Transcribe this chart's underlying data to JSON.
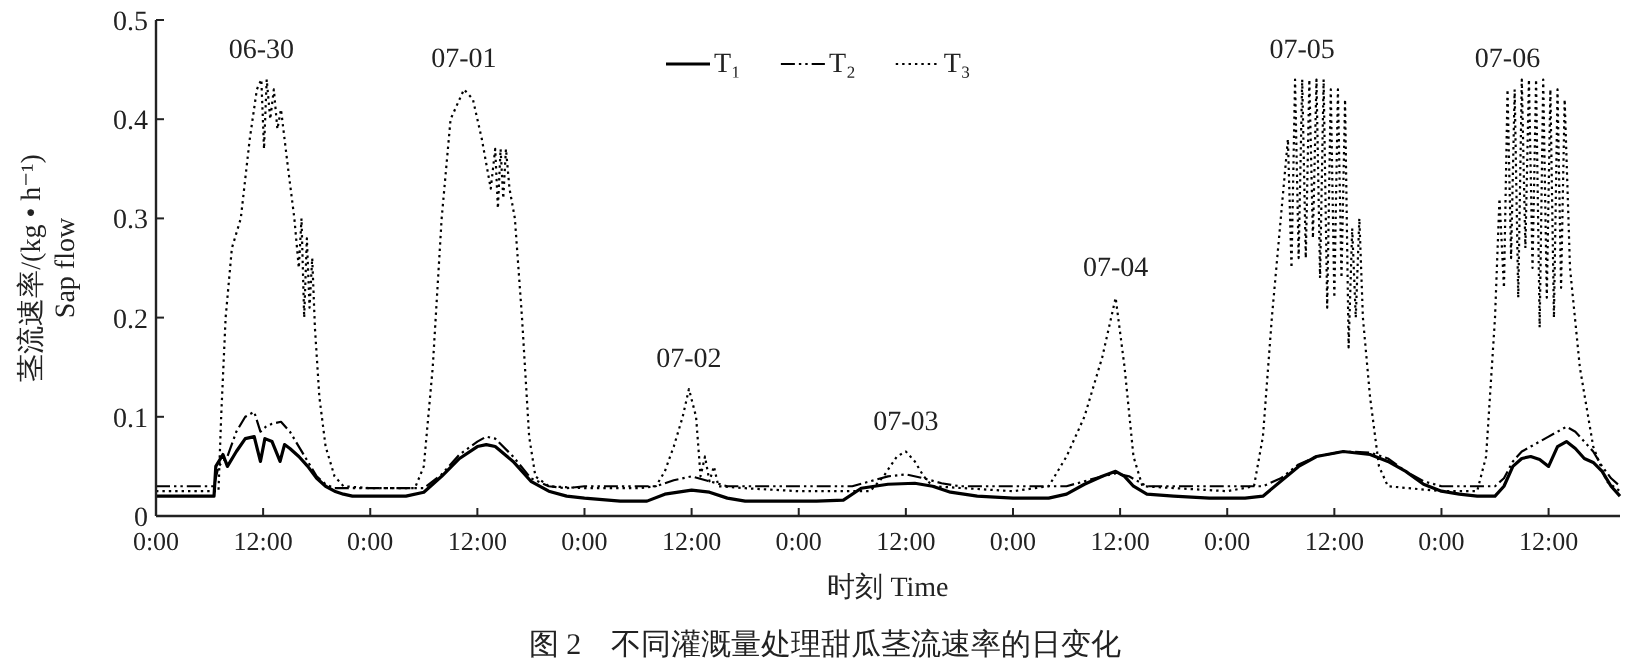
{
  "chart_data": {
    "type": "line",
    "xlabel": "时刻 Time",
    "ylabel": "茎流速率/(kg • h⁻¹)\nSap flow",
    "annotations": [
      {
        "text": "06-30",
        "x": "--06-30T11:48",
        "y": 0.44
      },
      {
        "text": "07-01",
        "x": "--07-01T10:30",
        "y": 0.43
      },
      {
        "text": "07-02",
        "x": "--07-02T11:42",
        "y": 0.128
      },
      {
        "text": "07-03",
        "x": "--07-03T12:00",
        "y": 0.065
      },
      {
        "text": "07-04",
        "x": "--07-04T11:30",
        "y": 0.22
      },
      {
        "text": "07-05",
        "x": "--07-05T08:24",
        "y": 0.44
      },
      {
        "text": "07-06",
        "x": "--07-06T07:24",
        "y": 0.43
      },
      "图 2　不同灌溉量处理甜瓜茎流速率的日变化"
    ],
    "xlim": [
      "--06-30T00:00",
      "--07-06T20:00"
    ],
    "ylim": [
      0,
      0.5
    ],
    "yticks": [
      0,
      0.1,
      0.2,
      0.3,
      0.4,
      0.5
    ],
    "xticks": [
      {
        "value": "--06-30T00:00",
        "label": "0:00"
      },
      {
        "value": "--06-30T12:00",
        "label": "12:00"
      },
      {
        "value": "--07-01T00:00",
        "label": "0:00"
      },
      {
        "value": "--07-01T12:00",
        "label": "12:00"
      },
      {
        "value": "--07-02T00:00",
        "label": "0:00"
      },
      {
        "value": "--07-02T12:00",
        "label": "12:00"
      },
      {
        "value": "--07-03T00:00",
        "label": "0:00"
      },
      {
        "value": "--07-03T12:00",
        "label": "12:00"
      },
      {
        "value": "--07-04T00:00",
        "label": "0:00"
      },
      {
        "value": "--07-04T12:00",
        "label": "12:00"
      },
      {
        "value": "--07-05T00:00",
        "label": "0:00"
      },
      {
        "value": "--07-05T12:00",
        "label": "12:00"
      },
      {
        "value": "--07-06T00:00",
        "label": "0:00"
      },
      {
        "value": "--07-06T12:00",
        "label": "12:00"
      }
    ],
    "legend": "top",
    "grid": false,
    "marker": "none",
    "series": [
      {
        "name": "T₁",
        "color": "#000000",
        "line_style": "solid",
        "x": [
          "--06-30T00:00",
          "--06-30T06:30",
          "--06-30T06:42",
          "--06-30T07:30",
          "--06-30T08:00",
          "--06-30T09:00",
          "--06-30T10:00",
          "--06-30T11:00",
          "--06-30T11:42",
          "--06-30T12:12",
          "--06-30T13:00",
          "--06-30T13:54",
          "--06-30T14:24",
          "--06-30T15:00",
          "--06-30T16:00",
          "--06-30T17:00",
          "--06-30T18:00",
          "--06-30T19:00",
          "--06-30T20:00",
          "--06-30T21:00",
          "--06-30T22:00",
          "--07-01T00:00",
          "--07-01T04:00",
          "--07-01T06:00",
          "--07-01T08:00",
          "--07-01T10:00",
          "--07-01T12:00",
          "--07-01T13:00",
          "--07-01T14:00",
          "--07-01T16:00",
          "--07-01T18:00",
          "--07-01T20:00",
          "--07-01T22:00",
          "--07-02T00:00",
          "--07-02T04:00",
          "--07-02T07:00",
          "--07-02T09:00",
          "--07-02T12:00",
          "--07-02T14:00",
          "--07-02T16:00",
          "--07-02T18:00",
          "--07-02T22:00",
          "--07-03T02:00",
          "--07-03T05:00",
          "--07-03T07:00",
          "--07-03T10:00",
          "--07-03T13:00",
          "--07-03T15:00",
          "--07-03T17:00",
          "--07-03T20:00",
          "--07-04T00:00",
          "--07-04T04:00",
          "--07-04T06:00",
          "--07-04T08:00",
          "--07-04T10:00",
          "--07-04T11:30",
          "--07-04T12:30",
          "--07-04T13:30",
          "--07-04T15:00",
          "--07-04T18:00",
          "--07-04T22:00",
          "--07-05T02:00",
          "--07-05T04:00",
          "--07-05T06:00",
          "--07-05T08:00",
          "--07-05T10:00",
          "--07-05T13:00",
          "--07-05T16:00",
          "--07-05T18:00",
          "--07-05T20:00",
          "--07-05T22:00",
          "--07-06T00:00",
          "--07-06T02:00",
          "--07-06T04:00",
          "--07-06T06:00",
          "--07-06T07:00",
          "--07-06T08:00",
          "--07-06T09:00",
          "--07-06T10:00",
          "--07-06T11:00",
          "--07-06T12:00",
          "--07-06T13:00",
          "--07-06T14:00",
          "--07-06T15:00",
          "--07-06T16:00",
          "--07-06T17:00",
          "--07-06T18:00",
          "--07-06T19:00",
          "--07-06T20:00"
        ],
        "values": [
          0.02,
          0.02,
          0.05,
          0.062,
          0.05,
          0.065,
          0.078,
          0.08,
          0.055,
          0.078,
          0.075,
          0.055,
          0.072,
          0.068,
          0.06,
          0.05,
          0.038,
          0.03,
          0.025,
          0.022,
          0.02,
          0.02,
          0.02,
          0.024,
          0.04,
          0.058,
          0.07,
          0.072,
          0.07,
          0.055,
          0.035,
          0.025,
          0.02,
          0.018,
          0.015,
          0.015,
          0.022,
          0.026,
          0.024,
          0.018,
          0.015,
          0.015,
          0.015,
          0.016,
          0.028,
          0.032,
          0.033,
          0.03,
          0.024,
          0.02,
          0.018,
          0.018,
          0.022,
          0.032,
          0.04,
          0.045,
          0.04,
          0.03,
          0.022,
          0.02,
          0.018,
          0.018,
          0.02,
          0.035,
          0.05,
          0.06,
          0.065,
          0.062,
          0.055,
          0.045,
          0.032,
          0.025,
          0.022,
          0.02,
          0.02,
          0.03,
          0.05,
          0.058,
          0.06,
          0.057,
          0.05,
          0.07,
          0.075,
          0.068,
          0.058,
          0.054,
          0.045,
          0.03,
          0.02
        ]
      },
      {
        "name": "T₂",
        "color": "#000000",
        "line_style": "dashed",
        "x": [
          "--06-30T00:00",
          "--06-30T06:30",
          "--06-30T07:00",
          "--06-30T08:00",
          "--06-30T09:00",
          "--06-30T10:00",
          "--06-30T11:00",
          "--06-30T11:42",
          "--06-30T12:18",
          "--06-30T13:00",
          "--06-30T14:00",
          "--06-30T15:00",
          "--06-30T16:00",
          "--06-30T17:00",
          "--06-30T18:00",
          "--06-30T19:00",
          "--06-30T20:00",
          "--06-30T22:00",
          "--07-01T00:00",
          "--07-01T04:00",
          "--07-01T06:00",
          "--07-01T08:00",
          "--07-01T10:00",
          "--07-01T12:00",
          "--07-01T13:00",
          "--07-01T14:00",
          "--07-01T16:00",
          "--07-01T18:00",
          "--07-01T20:00",
          "--07-01T22:00",
          "--07-02T00:00",
          "--07-02T08:00",
          "--07-02T10:00",
          "--07-02T12:00",
          "--07-02T14:00",
          "--07-02T16:00",
          "--07-03T00:00",
          "--07-03T06:00",
          "--07-03T08:00",
          "--07-03T10:00",
          "--07-03T12:00",
          "--07-03T14:00",
          "--07-03T16:00",
          "--07-03T18:00",
          "--07-04T00:00",
          "--07-04T06:00",
          "--07-04T08:00",
          "--07-04T10:00",
          "--07-04T11:30",
          "--07-04T13:00",
          "--07-04T15:00",
          "--07-05T00:00",
          "--07-05T04:00",
          "--07-05T06:00",
          "--07-05T08:00",
          "--07-05T10:00",
          "--07-05T13:00",
          "--07-05T16:00",
          "--07-05T18:00",
          "--07-05T20:00",
          "--07-05T22:00",
          "--07-06T00:00",
          "--07-06T04:00",
          "--07-06T06:00",
          "--07-06T07:00",
          "--07-06T08:00",
          "--07-06T09:00",
          "--07-06T10:00",
          "--07-06T11:00",
          "--07-06T12:00",
          "--07-06T13:00",
          "--07-06T14:00",
          "--07-06T15:00",
          "--07-06T16:00",
          "--07-06T17:00",
          "--07-06T18:00",
          "--07-06T19:00",
          "--07-06T20:00"
        ],
        "values": [
          0.03,
          0.03,
          0.05,
          0.06,
          0.085,
          0.1,
          0.105,
          0.085,
          0.09,
          0.093,
          0.095,
          0.085,
          0.07,
          0.055,
          0.04,
          0.032,
          0.028,
          0.028,
          0.028,
          0.028,
          0.028,
          0.042,
          0.062,
          0.075,
          0.08,
          0.078,
          0.06,
          0.038,
          0.03,
          0.028,
          0.03,
          0.03,
          0.036,
          0.04,
          0.035,
          0.03,
          0.03,
          0.03,
          0.035,
          0.04,
          0.042,
          0.038,
          0.033,
          0.03,
          0.03,
          0.03,
          0.035,
          0.04,
          0.043,
          0.04,
          0.03,
          0.03,
          0.03,
          0.038,
          0.052,
          0.06,
          0.065,
          0.064,
          0.058,
          0.045,
          0.035,
          0.03,
          0.03,
          0.03,
          0.038,
          0.055,
          0.065,
          0.07,
          0.075,
          0.08,
          0.085,
          0.09,
          0.085,
          0.075,
          0.065,
          0.05,
          0.038,
          0.03
        ]
      },
      {
        "name": "T₃",
        "color": "#000000",
        "line_style": "dotted",
        "x": [
          "--06-30T00:00",
          "--06-30T07:00",
          "--06-30T07:18",
          "--06-30T07:48",
          "--06-30T08:30",
          "--06-30T09:30",
          "--06-30T10:30",
          "--06-30T11:18",
          "--06-30T11:48",
          "--06-30T12:06",
          "--06-30T12:24",
          "--06-30T12:48",
          "--06-30T13:12",
          "--06-30T13:36",
          "--06-30T14:00",
          "--06-30T14:48",
          "--06-30T15:30",
          "--06-30T16:00",
          "--06-30T16:18",
          "--06-30T16:36",
          "--06-30T16:54",
          "--06-30T17:12",
          "--06-30T17:30",
          "--06-30T17:48",
          "--06-30T18:18",
          "--06-30T19:00",
          "--06-30T20:00",
          "--06-30T21:00",
          "--07-01T00:00",
          "--07-01T05:00",
          "--07-01T06:00",
          "--07-01T07:00",
          "--07-01T08:00",
          "--07-01T09:00",
          "--07-01T10:30",
          "--07-01T11:30",
          "--07-01T12:30",
          "--07-01T13:30",
          "--07-01T14:00",
          "--07-01T14:18",
          "--07-01T14:36",
          "--07-01T14:54",
          "--07-01T15:12",
          "--07-01T15:36",
          "--07-01T16:12",
          "--07-01T17:00",
          "--07-01T17:48",
          "--07-01T18:30",
          "--07-01T20:00",
          "--07-02T00:00",
          "--07-02T06:00",
          "--07-02T08:00",
          "--07-02T09:00",
          "--07-02T10:00",
          "--07-02T11:00",
          "--07-02T11:42",
          "--07-02T12:30",
          "--07-02T13:00",
          "--07-02T13:30",
          "--07-02T14:00",
          "--07-02T14:30",
          "--07-02T15:00",
          "--07-02T18:00",
          "--07-03T00:00",
          "--07-03T08:00",
          "--07-03T09:30",
          "--07-03T11:00",
          "--07-03T12:00",
          "--07-03T13:00",
          "--07-03T14:00",
          "--07-03T15:00",
          "--07-04T00:00",
          "--07-04T04:00",
          "--07-04T06:00",
          "--07-04T08:00",
          "--07-04T10:00",
          "--07-04T11:30",
          "--07-04T12:30",
          "--07-04T13:30",
          "--07-04T14:30",
          "--07-05T00:00",
          "--07-05T03:00",
          "--07-05T04:00",
          "--07-05T05:00",
          "--07-05T06:00",
          "--07-05T06:48",
          "--07-05T07:12",
          "--07-05T07:36",
          "--07-05T08:00",
          "--07-05T08:24",
          "--07-05T08:48",
          "--07-05T09:12",
          "--07-05T09:36",
          "--07-05T10:00",
          "--07-05T10:24",
          "--07-05T10:48",
          "--07-05T11:12",
          "--07-05T11:36",
          "--07-05T12:00",
          "--07-05T12:24",
          "--07-05T12:48",
          "--07-05T13:12",
          "--07-05T13:36",
          "--07-05T14:00",
          "--07-05T14:24",
          "--07-05T14:48",
          "--07-05T15:12",
          "--07-05T16:00",
          "--07-05T17:00",
          "--07-05T18:00",
          "--07-06T00:00",
          "--07-06T04:00",
          "--07-06T05:00",
          "--07-06T06:00",
          "--07-06T06:30",
          "--07-06T07:00",
          "--07-06T07:24",
          "--07-06T07:48",
          "--07-06T08:12",
          "--07-06T08:36",
          "--07-06T09:00",
          "--07-06T09:24",
          "--07-06T09:48",
          "--07-06T10:12",
          "--07-06T10:36",
          "--07-06T11:00",
          "--07-06T11:24",
          "--07-06T11:48",
          "--07-06T12:12",
          "--07-06T12:36",
          "--07-06T13:00",
          "--07-06T13:24",
          "--07-06T13:48",
          "--07-06T14:24",
          "--07-06T15:30",
          "--07-06T17:00",
          "--07-06T18:30",
          "--07-06T20:00"
        ],
        "values": [
          0.025,
          0.025,
          0.1,
          0.2,
          0.27,
          0.3,
          0.38,
          0.43,
          0.44,
          0.37,
          0.44,
          0.4,
          0.43,
          0.39,
          0.41,
          0.35,
          0.3,
          0.25,
          0.3,
          0.2,
          0.28,
          0.21,
          0.26,
          0.19,
          0.12,
          0.07,
          0.04,
          0.03,
          0.028,
          0.028,
          0.05,
          0.15,
          0.3,
          0.4,
          0.43,
          0.42,
          0.38,
          0.33,
          0.37,
          0.31,
          0.37,
          0.32,
          0.37,
          0.33,
          0.3,
          0.2,
          0.08,
          0.04,
          0.03,
          0.028,
          0.028,
          0.03,
          0.045,
          0.07,
          0.1,
          0.128,
          0.1,
          0.04,
          0.06,
          0.035,
          0.05,
          0.03,
          0.028,
          0.025,
          0.025,
          0.04,
          0.06,
          0.065,
          0.055,
          0.04,
          0.03,
          0.025,
          0.03,
          0.06,
          0.1,
          0.16,
          0.22,
          0.15,
          0.06,
          0.03,
          0.025,
          0.03,
          0.08,
          0.2,
          0.3,
          0.38,
          0.25,
          0.44,
          0.26,
          0.44,
          0.26,
          0.44,
          0.28,
          0.44,
          0.24,
          0.44,
          0.21,
          0.43,
          0.22,
          0.43,
          0.24,
          0.42,
          0.17,
          0.29,
          0.2,
          0.3,
          0.2,
          0.12,
          0.05,
          0.03,
          0.025,
          0.025,
          0.06,
          0.2,
          0.32,
          0.23,
          0.43,
          0.26,
          0.43,
          0.22,
          0.44,
          0.27,
          0.44,
          0.25,
          0.44,
          0.19,
          0.44,
          0.22,
          0.43,
          0.2,
          0.43,
          0.23,
          0.42,
          0.25,
          0.15,
          0.07,
          0.035,
          0.025
        ]
      }
    ]
  }
}
